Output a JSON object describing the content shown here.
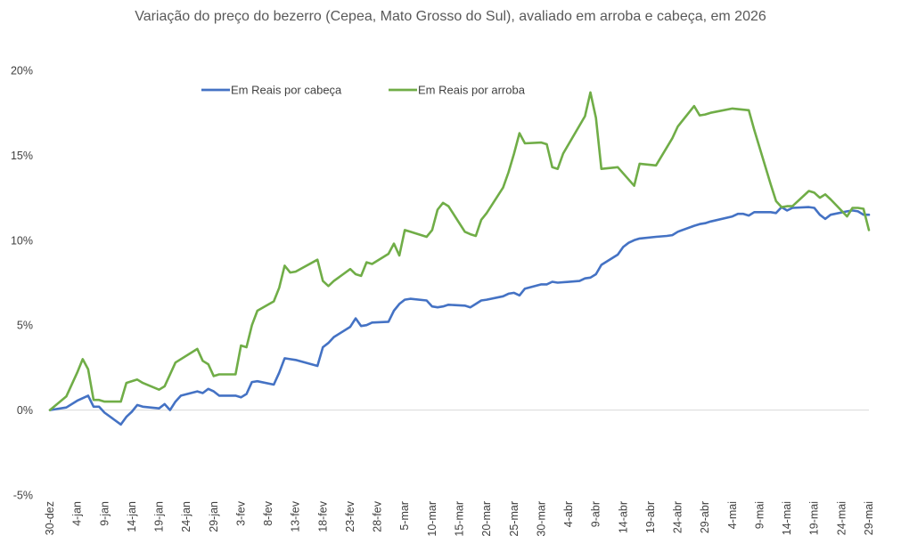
{
  "chart_data": {
    "type": "line",
    "title": "Variação do preço do bezerro (Cepea, Mato Grosso do Sul), avaliado em arroba e cabeça, em 2026",
    "xlabel": "",
    "ylabel": "",
    "x_start": "30-dez",
    "x_ticks": [
      "30-dez",
      "4-jan",
      "9-jan",
      "14-jan",
      "19-jan",
      "24-jan",
      "29-jan",
      "3-fev",
      "8-fev",
      "13-fev",
      "18-fev",
      "23-fev",
      "28-fev",
      "5-mar",
      "10-mar",
      "15-mar",
      "20-mar",
      "25-mar",
      "30-mar",
      "4-abr",
      "9-abr",
      "14-abr",
      "19-abr",
      "24-abr",
      "29-abr",
      "4-mai",
      "9-mai",
      "14-mai",
      "19-mai",
      "24-mai",
      "29-mai"
    ],
    "y_ticks": [
      "-5%",
      "0%",
      "5%",
      "10%",
      "15%",
      "20%"
    ],
    "ylim": [
      -5,
      20
    ],
    "y_unit": "%",
    "grid": false,
    "legend_position": "top-left",
    "series": [
      {
        "name": "Em Reais por cabeça",
        "color": "#4472C4",
        "points": [
          [
            "30-dez",
            0.0
          ],
          [
            "31-dez",
            0.05
          ],
          [
            "2-jan",
            0.15
          ],
          [
            "4-jan",
            0.55
          ],
          [
            "6-jan",
            0.85
          ],
          [
            "7-jan",
            0.2
          ],
          [
            "8-jan",
            0.2
          ],
          [
            "9-jan",
            -0.15
          ],
          [
            "12-jan",
            -0.85
          ],
          [
            "13-jan",
            -0.4
          ],
          [
            "14-jan",
            -0.1
          ],
          [
            "15-jan",
            0.3
          ],
          [
            "16-jan",
            0.2
          ],
          [
            "19-jan",
            0.1
          ],
          [
            "20-jan",
            0.35
          ],
          [
            "21-jan",
            0.0
          ],
          [
            "22-jan",
            0.5
          ],
          [
            "23-jan",
            0.85
          ],
          [
            "26-jan",
            1.1
          ],
          [
            "27-jan",
            1.0
          ],
          [
            "28-jan",
            1.25
          ],
          [
            "29-jan",
            1.1
          ],
          [
            "30-jan",
            0.85
          ],
          [
            "2-fev",
            0.85
          ],
          [
            "3-fev",
            0.75
          ],
          [
            "4-fev",
            0.95
          ],
          [
            "5-fev",
            1.65
          ],
          [
            "6-fev",
            1.7
          ],
          [
            "9-fev",
            1.5
          ],
          [
            "10-fev",
            2.2
          ],
          [
            "11-fev",
            3.05
          ],
          [
            "12-fev",
            3.0
          ],
          [
            "13-fev",
            2.95
          ],
          [
            "17-fev",
            2.6
          ],
          [
            "18-fev",
            3.7
          ],
          [
            "19-fev",
            3.95
          ],
          [
            "20-fev",
            4.3
          ],
          [
            "23-fev",
            4.9
          ],
          [
            "24-fev",
            5.4
          ],
          [
            "25-fev",
            4.95
          ],
          [
            "26-fev",
            5.0
          ],
          [
            "27-fev",
            5.15
          ],
          [
            "2-mar",
            5.2
          ],
          [
            "3-mar",
            5.85
          ],
          [
            "4-mar",
            6.25
          ],
          [
            "5-mar",
            6.5
          ],
          [
            "6-mar",
            6.55
          ],
          [
            "9-mar",
            6.45
          ],
          [
            "10-mar",
            6.1
          ],
          [
            "11-mar",
            6.05
          ],
          [
            "12-mar",
            6.1
          ],
          [
            "13-mar",
            6.2
          ],
          [
            "16-mar",
            6.15
          ],
          [
            "17-mar",
            6.05
          ],
          [
            "18-mar",
            6.25
          ],
          [
            "19-mar",
            6.45
          ],
          [
            "20-mar",
            6.5
          ],
          [
            "23-mar",
            6.7
          ],
          [
            "24-mar",
            6.85
          ],
          [
            "25-mar",
            6.9
          ],
          [
            "26-mar",
            6.75
          ],
          [
            "27-mar",
            7.15
          ],
          [
            "30-mar",
            7.4
          ],
          [
            "31-mar",
            7.4
          ],
          [
            "1-abr",
            7.55
          ],
          [
            "2-abr",
            7.5
          ],
          [
            "6-abr",
            7.6
          ],
          [
            "7-abr",
            7.75
          ],
          [
            "8-abr",
            7.8
          ],
          [
            "9-abr",
            8.0
          ],
          [
            "10-abr",
            8.55
          ],
          [
            "13-abr",
            9.15
          ],
          [
            "14-abr",
            9.6
          ],
          [
            "15-abr",
            9.85
          ],
          [
            "16-abr",
            10.0
          ],
          [
            "17-abr",
            10.1
          ],
          [
            "20-abr",
            10.2
          ],
          [
            "22-abr",
            10.25
          ],
          [
            "23-abr",
            10.3
          ],
          [
            "24-abr",
            10.5
          ],
          [
            "27-abr",
            10.85
          ],
          [
            "28-abr",
            10.95
          ],
          [
            "29-abr",
            11.0
          ],
          [
            "30-abr",
            11.1
          ],
          [
            "4-mai",
            11.4
          ],
          [
            "5-mai",
            11.55
          ],
          [
            "6-mai",
            11.55
          ],
          [
            "7-mai",
            11.45
          ],
          [
            "8-mai",
            11.65
          ],
          [
            "11-mai",
            11.65
          ],
          [
            "12-mai",
            11.6
          ],
          [
            "13-mai",
            11.95
          ],
          [
            "14-mai",
            11.75
          ],
          [
            "15-mai",
            11.9
          ],
          [
            "18-mai",
            11.95
          ],
          [
            "19-mai",
            11.9
          ],
          [
            "20-mai",
            11.5
          ],
          [
            "21-mai",
            11.25
          ],
          [
            "22-mai",
            11.5
          ],
          [
            "25-mai",
            11.7
          ],
          [
            "26-mai",
            11.75
          ],
          [
            "27-mai",
            11.7
          ],
          [
            "28-mai",
            11.5
          ],
          [
            "29-mai",
            11.5
          ]
        ]
      },
      {
        "name": "Em Reais por arroba",
        "color": "#70AD47",
        "points": [
          [
            "30-dez",
            0.0
          ],
          [
            "2-jan",
            0.8
          ],
          [
            "4-jan",
            2.2
          ],
          [
            "5-jan",
            3.0
          ],
          [
            "6-jan",
            2.4
          ],
          [
            "7-jan",
            0.6
          ],
          [
            "8-jan",
            0.6
          ],
          [
            "9-jan",
            0.5
          ],
          [
            "12-jan",
            0.5
          ],
          [
            "13-jan",
            1.6
          ],
          [
            "15-jan",
            1.8
          ],
          [
            "16-jan",
            1.6
          ],
          [
            "19-jan",
            1.2
          ],
          [
            "20-jan",
            1.4
          ],
          [
            "22-jan",
            2.8
          ],
          [
            "26-jan",
            3.6
          ],
          [
            "27-jan",
            2.9
          ],
          [
            "28-jan",
            2.7
          ],
          [
            "29-jan",
            2.0
          ],
          [
            "30-jan",
            2.1
          ],
          [
            "2-fev",
            2.1
          ],
          [
            "3-fev",
            3.8
          ],
          [
            "4-fev",
            3.7
          ],
          [
            "5-fev",
            5.0
          ],
          [
            "6-fev",
            5.85
          ],
          [
            "9-fev",
            6.4
          ],
          [
            "10-fev",
            7.2
          ],
          [
            "11-fev",
            8.5
          ],
          [
            "12-fev",
            8.1
          ],
          [
            "13-fev",
            8.15
          ],
          [
            "17-fev",
            8.85
          ],
          [
            "18-fev",
            7.6
          ],
          [
            "19-fev",
            7.3
          ],
          [
            "20-fev",
            7.6
          ],
          [
            "23-fev",
            8.3
          ],
          [
            "24-fev",
            8.0
          ],
          [
            "25-fev",
            7.9
          ],
          [
            "26-fev",
            8.7
          ],
          [
            "27-fev",
            8.6
          ],
          [
            "2-mar",
            9.2
          ],
          [
            "3-mar",
            9.8
          ],
          [
            "4-mar",
            9.1
          ],
          [
            "5-mar",
            10.6
          ],
          [
            "6-mar",
            10.5
          ],
          [
            "9-mar",
            10.2
          ],
          [
            "10-mar",
            10.6
          ],
          [
            "11-mar",
            11.8
          ],
          [
            "12-mar",
            12.2
          ],
          [
            "13-mar",
            12.0
          ],
          [
            "16-mar",
            10.5
          ],
          [
            "17-mar",
            10.35
          ],
          [
            "18-mar",
            10.25
          ],
          [
            "19-mar",
            11.2
          ],
          [
            "20-mar",
            11.6
          ],
          [
            "23-mar",
            13.1
          ],
          [
            "24-mar",
            14.0
          ],
          [
            "25-mar",
            15.1
          ],
          [
            "26-mar",
            16.3
          ],
          [
            "27-mar",
            15.7
          ],
          [
            "30-mar",
            15.75
          ],
          [
            "31-mar",
            15.65
          ],
          [
            "1-abr",
            14.3
          ],
          [
            "2-abr",
            14.2
          ],
          [
            "3-abr",
            15.1
          ],
          [
            "7-abr",
            17.3
          ],
          [
            "8-abr",
            18.7
          ],
          [
            "9-abr",
            17.2
          ],
          [
            "10-abr",
            14.2
          ],
          [
            "13-abr",
            14.3
          ],
          [
            "16-abr",
            13.2
          ],
          [
            "17-abr",
            14.5
          ],
          [
            "20-abr",
            14.4
          ],
          [
            "23-abr",
            16.0
          ],
          [
            "24-abr",
            16.7
          ],
          [
            "27-abr",
            17.9
          ],
          [
            "28-abr",
            17.35
          ],
          [
            "29-abr",
            17.4
          ],
          [
            "30-abr",
            17.5
          ],
          [
            "4-mai",
            17.75
          ],
          [
            "7-mai",
            17.65
          ],
          [
            "8-mai",
            16.5
          ],
          [
            "11-mai",
            13.3
          ],
          [
            "12-mai",
            12.3
          ],
          [
            "13-mai",
            11.95
          ],
          [
            "14-mai",
            12.0
          ],
          [
            "15-mai",
            12.0
          ],
          [
            "18-mai",
            12.9
          ],
          [
            "19-mai",
            12.8
          ],
          [
            "20-mai",
            12.5
          ],
          [
            "21-mai",
            12.7
          ],
          [
            "22-mai",
            12.4
          ],
          [
            "25-mai",
            11.4
          ],
          [
            "26-mai",
            11.9
          ],
          [
            "27-mai",
            11.9
          ],
          [
            "28-mai",
            11.85
          ],
          [
            "29-mai",
            10.6
          ]
        ]
      }
    ]
  }
}
